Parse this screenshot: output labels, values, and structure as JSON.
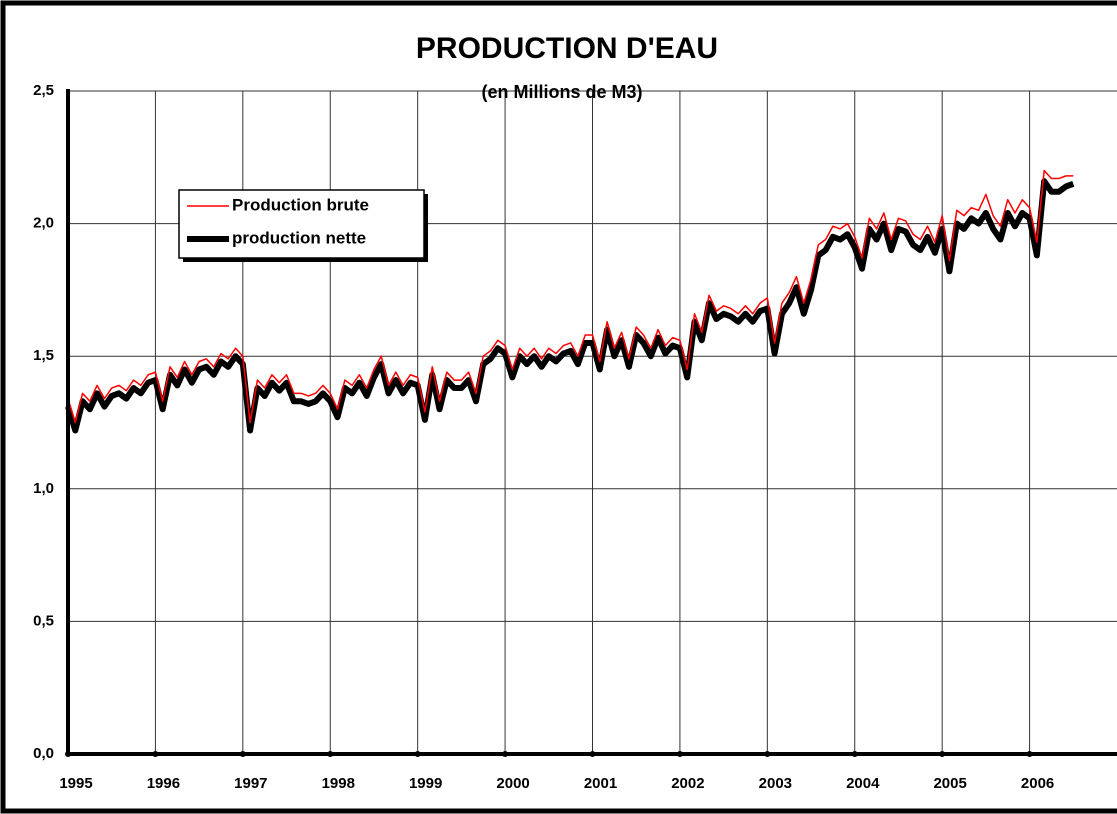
{
  "chart_data": {
    "type": "line",
    "title": "PRODUCTION D'EAU",
    "subtitle": "(en Millions de M3)",
    "x": [
      1995,
      1995.083,
      1995.167,
      1995.25,
      1995.333,
      1995.417,
      1995.5,
      1995.583,
      1995.667,
      1995.75,
      1995.833,
      1995.917,
      1996,
      1996.083,
      1996.167,
      1996.25,
      1996.333,
      1996.417,
      1996.5,
      1996.583,
      1996.667,
      1996.75,
      1996.833,
      1996.917,
      1997,
      1997.083,
      1997.167,
      1997.25,
      1997.333,
      1997.417,
      1997.5,
      1997.583,
      1997.667,
      1997.75,
      1997.833,
      1997.917,
      1998,
      1998.083,
      1998.167,
      1998.25,
      1998.333,
      1998.417,
      1998.5,
      1998.583,
      1998.667,
      1998.75,
      1998.833,
      1998.917,
      1999,
      1999.083,
      1999.167,
      1999.25,
      1999.333,
      1999.417,
      1999.5,
      1999.583,
      1999.667,
      1999.75,
      1999.833,
      1999.917,
      2000,
      2000.083,
      2000.167,
      2000.25,
      2000.333,
      2000.417,
      2000.5,
      2000.583,
      2000.667,
      2000.75,
      2000.833,
      2000.917,
      2001,
      2001.083,
      2001.167,
      2001.25,
      2001.333,
      2001.417,
      2001.5,
      2001.583,
      2001.667,
      2001.75,
      2001.833,
      2001.917,
      2002,
      2002.083,
      2002.167,
      2002.25,
      2002.333,
      2002.417,
      2002.5,
      2002.583,
      2002.667,
      2002.75,
      2002.833,
      2002.917,
      2003,
      2003.083,
      2003.167,
      2003.25,
      2003.333,
      2003.417,
      2003.5,
      2003.583,
      2003.667,
      2003.75,
      2003.833,
      2003.917,
      2004,
      2004.083,
      2004.167,
      2004.25,
      2004.333,
      2004.417,
      2004.5,
      2004.583,
      2004.667,
      2004.75,
      2004.833,
      2004.917,
      2005,
      2005.083,
      2005.167,
      2005.25,
      2005.333,
      2005.417,
      2005.5,
      2005.583,
      2005.667,
      2005.75,
      2005.833,
      2005.917,
      2006,
      2006.083,
      2006.167,
      2006.25,
      2006.333,
      2006.417,
      2006.5
    ],
    "series": [
      {
        "name": "Production brute",
        "color": "#ff0000",
        "width": 1.5,
        "values": [
          1.34,
          1.25,
          1.36,
          1.33,
          1.39,
          1.34,
          1.38,
          1.39,
          1.37,
          1.41,
          1.39,
          1.43,
          1.44,
          1.33,
          1.46,
          1.42,
          1.48,
          1.43,
          1.48,
          1.49,
          1.46,
          1.51,
          1.49,
          1.53,
          1.5,
          1.25,
          1.41,
          1.38,
          1.43,
          1.4,
          1.43,
          1.36,
          1.36,
          1.35,
          1.36,
          1.39,
          1.36,
          1.3,
          1.41,
          1.39,
          1.43,
          1.38,
          1.45,
          1.5,
          1.39,
          1.44,
          1.39,
          1.43,
          1.42,
          1.29,
          1.46,
          1.33,
          1.44,
          1.41,
          1.41,
          1.44,
          1.36,
          1.5,
          1.52,
          1.56,
          1.54,
          1.45,
          1.53,
          1.5,
          1.53,
          1.49,
          1.53,
          1.51,
          1.54,
          1.55,
          1.5,
          1.58,
          1.58,
          1.48,
          1.63,
          1.53,
          1.59,
          1.49,
          1.61,
          1.58,
          1.53,
          1.6,
          1.54,
          1.57,
          1.56,
          1.45,
          1.66,
          1.59,
          1.73,
          1.67,
          1.69,
          1.68,
          1.66,
          1.69,
          1.66,
          1.7,
          1.72,
          1.55,
          1.7,
          1.74,
          1.8,
          1.7,
          1.79,
          1.92,
          1.94,
          1.99,
          1.98,
          2.0,
          1.95,
          1.87,
          2.02,
          1.98,
          2.04,
          1.94,
          2.02,
          2.01,
          1.96,
          1.94,
          1.99,
          1.93,
          2.03,
          1.86,
          2.05,
          2.03,
          2.06,
          2.05,
          2.11,
          2.03,
          1.99,
          2.09,
          2.04,
          2.09,
          2.06,
          1.93,
          2.2,
          2.17,
          2.17,
          2.18,
          2.18
        ]
      },
      {
        "name": "production nette",
        "color": "#000000",
        "width": 6,
        "values": [
          1.31,
          1.22,
          1.33,
          1.3,
          1.36,
          1.31,
          1.35,
          1.36,
          1.34,
          1.38,
          1.36,
          1.4,
          1.41,
          1.3,
          1.43,
          1.39,
          1.45,
          1.4,
          1.45,
          1.46,
          1.43,
          1.48,
          1.46,
          1.5,
          1.47,
          1.22,
          1.38,
          1.35,
          1.4,
          1.37,
          1.4,
          1.33,
          1.33,
          1.32,
          1.33,
          1.36,
          1.33,
          1.27,
          1.38,
          1.36,
          1.4,
          1.35,
          1.42,
          1.47,
          1.36,
          1.41,
          1.36,
          1.4,
          1.39,
          1.26,
          1.43,
          1.3,
          1.41,
          1.38,
          1.38,
          1.41,
          1.33,
          1.47,
          1.49,
          1.53,
          1.51,
          1.42,
          1.5,
          1.47,
          1.5,
          1.46,
          1.5,
          1.48,
          1.51,
          1.52,
          1.47,
          1.55,
          1.55,
          1.45,
          1.6,
          1.5,
          1.56,
          1.46,
          1.58,
          1.55,
          1.5,
          1.57,
          1.51,
          1.54,
          1.53,
          1.42,
          1.63,
          1.56,
          1.7,
          1.64,
          1.66,
          1.65,
          1.63,
          1.66,
          1.63,
          1.67,
          1.68,
          1.51,
          1.66,
          1.7,
          1.76,
          1.66,
          1.75,
          1.88,
          1.9,
          1.95,
          1.94,
          1.96,
          1.91,
          1.83,
          1.98,
          1.94,
          2.0,
          1.9,
          1.98,
          1.97,
          1.92,
          1.9,
          1.95,
          1.89,
          1.98,
          1.82,
          2.0,
          1.98,
          2.02,
          2.0,
          2.04,
          1.98,
          1.94,
          2.04,
          1.99,
          2.04,
          2.02,
          1.88,
          2.16,
          2.12,
          2.12,
          2.14,
          2.15
        ]
      }
    ],
    "xlim": [
      1995,
      2007
    ],
    "xticks": [
      1995,
      1996,
      1997,
      1998,
      1999,
      2000,
      2001,
      2002,
      2003,
      2004,
      2005,
      2006
    ],
    "ylim": [
      0,
      2.5
    ],
    "yticks": [
      {
        "value": 0,
        "label": "0,0"
      },
      {
        "value": 0.5,
        "label": "0,5"
      },
      {
        "value": 1,
        "label": "1,0"
      },
      {
        "value": 1.5,
        "label": "1,5"
      },
      {
        "value": 2,
        "label": "2,0"
      },
      {
        "value": 2.5,
        "label": "2,5"
      }
    ],
    "grid": true
  }
}
